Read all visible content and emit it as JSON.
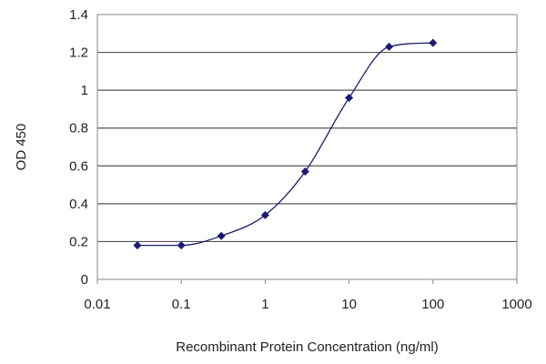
{
  "chart_data": {
    "type": "scatter",
    "title": "",
    "xlabel": "Recombinant Protein Concentration (ng/ml)",
    "ylabel": "OD 450",
    "x_scale": "log",
    "xlim": [
      0.01,
      1000
    ],
    "ylim": [
      0,
      1.4
    ],
    "x_tick_labels": [
      "0.01",
      "0.1",
      "1",
      "10",
      "100",
      "1000"
    ],
    "y_tick_labels": [
      "0",
      "0.2",
      "0.4",
      "0.6",
      "0.8",
      "1",
      "1.2",
      "1.4"
    ],
    "grid": "horizontal",
    "legend": "none",
    "colors": {
      "series": "#1a1a7a",
      "grid": "#555555",
      "axis": "#888888"
    },
    "series": [
      {
        "x": [
          0.03,
          0.1,
          0.3,
          1,
          3,
          10,
          30,
          100
        ],
        "y": [
          0.18,
          0.18,
          0.23,
          0.34,
          0.57,
          0.96,
          1.23,
          1.25
        ]
      }
    ]
  }
}
